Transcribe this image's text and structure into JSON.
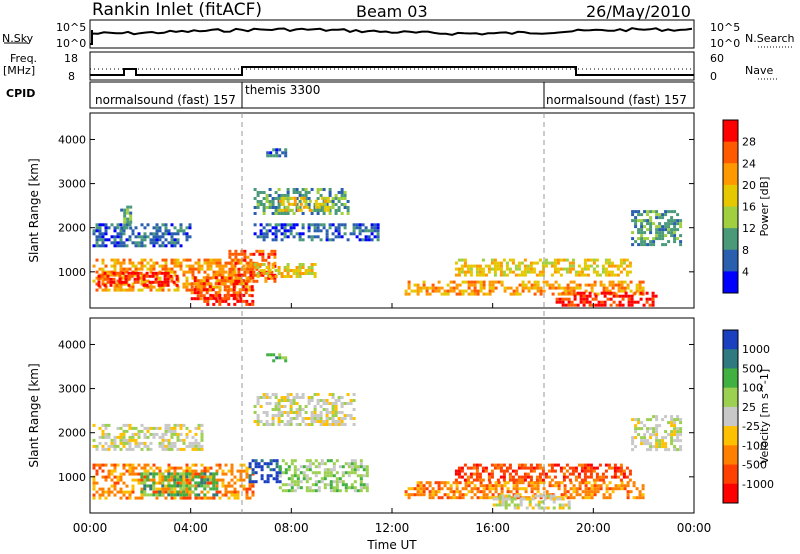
{
  "header": {
    "station": "Rankin Inlet (fitACF)",
    "beam": "Beam 03",
    "date": "26/May/2010"
  },
  "side_labels": {
    "nsky": "N.Sky",
    "nsearch": "N.Search",
    "freq": "Freq.",
    "freq_unit": "[MHz]",
    "nave": "Nave",
    "cpid": "CPID"
  },
  "ticks": {
    "noise_left_top": "10^5",
    "noise_left_bottom": "10^0",
    "noise_right_top": "10^5",
    "noise_right_bottom": "10^0",
    "freq_top": "18",
    "freq_bottom": "8",
    "nave_top": "60",
    "nave_bottom": "0"
  },
  "cpid_segments": [
    {
      "label": "normalsound (fast) 157",
      "start": 0
    },
    {
      "label": "themis 3300",
      "start": 6
    },
    {
      "label": "normalsound (fast) 157",
      "start": 18
    }
  ],
  "chart_data": [
    {
      "type": "heatmap",
      "name": "Power",
      "ylabel": "Slant Range [km]",
      "xlabel": "",
      "x_ticks": [
        "00:00",
        "04:00",
        "08:00",
        "12:00",
        "16:00",
        "20:00",
        "00:00"
      ],
      "xlim": [
        0,
        24
      ],
      "ylim": [
        180,
        4600
      ],
      "y_ticks": [
        1000,
        2000,
        3000,
        4000
      ],
      "colorbar_label": "Power [dB]",
      "colorbar_ticks": [
        "28",
        "24",
        "20",
        "16",
        "12",
        "8",
        "4"
      ],
      "colors": [
        "#ff0000",
        "#ff5a00",
        "#ff9900",
        "#e6c800",
        "#a0d040",
        "#4a9a7a",
        "#2a5fb0",
        "#0000ff"
      ],
      "regions": [
        {
          "t0": 0.1,
          "t1": 4.0,
          "r0": 1600,
          "r1": 2100,
          "level": 6
        },
        {
          "t0": 1.2,
          "t1": 1.6,
          "r0": 2000,
          "r1": 2500,
          "level": 5
        },
        {
          "t0": 0.1,
          "t1": 6.5,
          "r0": 600,
          "r1": 1300,
          "level": 2
        },
        {
          "t0": 0.3,
          "t1": 3.5,
          "r0": 700,
          "r1": 1000,
          "level": 0
        },
        {
          "t0": 4.0,
          "t1": 6.5,
          "r0": 400,
          "r1": 900,
          "level": 1
        },
        {
          "t0": 4.5,
          "t1": 6.5,
          "r0": 250,
          "r1": 500,
          "level": 0
        },
        {
          "t0": 5.5,
          "t1": 7.3,
          "r0": 800,
          "r1": 1500,
          "level": 1
        },
        {
          "t0": 6.5,
          "t1": 10.3,
          "r0": 2300,
          "r1": 2900,
          "level": 5
        },
        {
          "t0": 7.5,
          "t1": 9.5,
          "r0": 2400,
          "r1": 2700,
          "level": 3
        },
        {
          "t0": 6.5,
          "t1": 9.0,
          "r0": 900,
          "r1": 1200,
          "level": 3
        },
        {
          "t0": 6.5,
          "t1": 11.5,
          "r0": 1700,
          "r1": 2100,
          "level": 6
        },
        {
          "t0": 12.5,
          "t1": 22.0,
          "r0": 500,
          "r1": 800,
          "level": 2
        },
        {
          "t0": 14.5,
          "t1": 21.5,
          "r0": 900,
          "r1": 1300,
          "level": 3
        },
        {
          "t0": 18.5,
          "t1": 22.5,
          "r0": 250,
          "r1": 550,
          "level": 0
        },
        {
          "t0": 21.5,
          "t1": 23.5,
          "r0": 1600,
          "r1": 2400,
          "level": 5
        },
        {
          "t0": 7.0,
          "t1": 7.8,
          "r0": 3600,
          "r1": 3800,
          "level": 6
        }
      ]
    },
    {
      "type": "heatmap",
      "name": "Velocity",
      "ylabel": "Slant Range [km]",
      "xlabel": "Time UT",
      "x_ticks": [
        "00:00",
        "04:00",
        "08:00",
        "12:00",
        "16:00",
        "20:00",
        "00:00"
      ],
      "xlim": [
        0,
        24
      ],
      "ylim": [
        180,
        4600
      ],
      "y_ticks": [
        1000,
        2000,
        3000,
        4000
      ],
      "colorbar_label": "Velocity [m s^-1]",
      "colorbar_ticks": [
        "1000",
        "500",
        "100",
        "25",
        "-25",
        "-100",
        "-500",
        "-1000"
      ],
      "colors": [
        "#1a40c0",
        "#2e7a80",
        "#40b040",
        "#9cd050",
        "#c8c8c8",
        "#ffc000",
        "#ff8000",
        "#ff4000",
        "#ff0000"
      ],
      "regions": [
        {
          "t0": 0.1,
          "t1": 4.5,
          "r0": 1600,
          "r1": 2200,
          "level": 4
        },
        {
          "t0": 0.1,
          "t1": 6.5,
          "r0": 500,
          "r1": 1300,
          "level": 6
        },
        {
          "t0": 2.0,
          "t1": 5.0,
          "r0": 600,
          "r1": 1100,
          "level": 2
        },
        {
          "t0": 6.5,
          "t1": 10.5,
          "r0": 2200,
          "r1": 2900,
          "level": 4
        },
        {
          "t0": 6.3,
          "t1": 7.5,
          "r0": 900,
          "r1": 1400,
          "level": 0
        },
        {
          "t0": 7.5,
          "t1": 11.0,
          "r0": 700,
          "r1": 1400,
          "level": 3
        },
        {
          "t0": 12.5,
          "t1": 22.0,
          "r0": 500,
          "r1": 900,
          "level": 6
        },
        {
          "t0": 14.5,
          "t1": 21.5,
          "r0": 900,
          "r1": 1300,
          "level": 7
        },
        {
          "t0": 16.0,
          "t1": 19.0,
          "r0": 300,
          "r1": 600,
          "level": 4
        },
        {
          "t0": 21.5,
          "t1": 23.5,
          "r0": 1600,
          "r1": 2400,
          "level": 4
        },
        {
          "t0": 7.0,
          "t1": 7.8,
          "r0": 3600,
          "r1": 3800,
          "level": 2
        }
      ]
    }
  ]
}
